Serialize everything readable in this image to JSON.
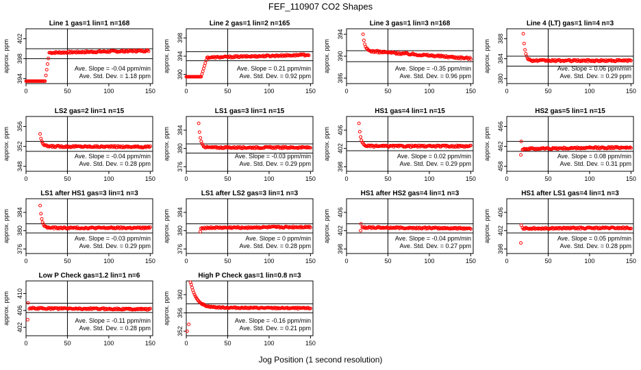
{
  "page_title": "FEF_110907  CO2 Shapes",
  "x_axis_label": "Jog Position (1 second resolution)",
  "y_axis_label": "approx. ppm",
  "colors": {
    "points": "#ff0000",
    "axes": "#000000"
  },
  "chart_data": [
    {
      "type": "scatter",
      "title": "Line 1 gas=1 lin=1 n=168",
      "ylim": [
        393,
        404
      ],
      "yticks": [
        394,
        398,
        402
      ],
      "xlim": [
        0,
        153
      ],
      "xticks": [
        0,
        50,
        100,
        150
      ],
      "hlines": [
        400,
        398
      ],
      "vline": 50,
      "series": [
        {
          "shape": "rise",
          "start": 0,
          "pre": 393.5,
          "rise_start": 23,
          "rise_end": 28,
          "val": 399.2,
          "end": 148,
          "final": 399.6
        }
      ],
      "slope_text": "Ave. Slope = -0.04  ppm/min",
      "std_text": "Ave. Std. Dev. = 1.18  ppm"
    },
    {
      "type": "scatter",
      "title": "Line 2 gas=1 lin=2 n=165",
      "ylim": [
        388,
        400
      ],
      "yticks": [
        390,
        394,
        398
      ],
      "xlim": [
        0,
        153
      ],
      "xticks": [
        0,
        50,
        100,
        150
      ],
      "hlines": [
        395,
        393
      ],
      "vline": 50,
      "series": [
        {
          "shape": "rise",
          "start": 0,
          "pre": 389.5,
          "rise_start": 18,
          "rise_end": 25,
          "val": 393.7,
          "end": 148,
          "final": 394.3
        }
      ],
      "slope_text": "Ave. Slope = 0.21  ppm/min",
      "std_text": "Ave. Std. Dev. = 0.92  ppm"
    },
    {
      "type": "scatter",
      "title": "Line 3 gas=1 lin=3 n=168",
      "ylim": [
        385,
        395
      ],
      "yticks": [
        386,
        390,
        394
      ],
      "xlim": [
        0,
        153
      ],
      "xticks": [
        0,
        50,
        100,
        150
      ],
      "hlines": [
        391,
        389
      ],
      "vline": 50,
      "series": [
        {
          "shape": "decay",
          "start": 20,
          "peak": 394,
          "val": 391,
          "end": 150,
          "final": 389.6
        }
      ],
      "slope_text": "Ave. Slope = -0.35  ppm/min",
      "std_text": "Ave. Std. Dev. = 0.96  ppm"
    },
    {
      "type": "scatter",
      "title": "Line 4 (LT) gas=1 lin=4 n=3",
      "ylim": [
        379,
        390
      ],
      "yticks": [
        380,
        384,
        388
      ],
      "xlim": [
        0,
        153
      ],
      "xticks": [
        0,
        50,
        100,
        150
      ],
      "hlines": [
        384.5,
        382.5
      ],
      "vline": 50,
      "series": [
        {
          "shape": "decay",
          "start": 20,
          "peak": 389,
          "val": 383.6,
          "end": 150,
          "final": 383.6
        }
      ],
      "slope_text": "Ave. Slope = 0.06  ppm/min",
      "std_text": "Ave. Std. Dev. = 0.29  ppm"
    },
    {
      "type": "scatter",
      "title": "LS2 gas=2 lin=1 n=15",
      "ylim": [
        347,
        358
      ],
      "yticks": [
        348,
        352,
        356
      ],
      "xlim": [
        0,
        153
      ],
      "xticks": [
        0,
        50,
        100,
        150
      ],
      "hlines": [
        353,
        351
      ],
      "vline": 50,
      "series": [
        {
          "shape": "decay",
          "start": 17,
          "peak": 354.5,
          "val": 352,
          "end": 150,
          "final": 351.9
        }
      ],
      "slope_text": "Ave. Slope = -0.04  ppm/min",
      "std_text": "Ave. Std. Dev. = 0.28  ppm"
    },
    {
      "type": "scatter",
      "title": "LS1 gas=3 lin=1 n=15",
      "ylim": [
        375,
        387
      ],
      "yticks": [
        376,
        380,
        384
      ],
      "xlim": [
        0,
        153
      ],
      "xticks": [
        0,
        50,
        100,
        150
      ],
      "hlines": [
        381,
        379
      ],
      "vline": 50,
      "series": [
        {
          "shape": "decay",
          "start": 15,
          "peak": 385.5,
          "val": 380.2,
          "end": 150,
          "final": 380.2
        }
      ],
      "slope_text": "Ave. Slope = -0.03  ppm/min",
      "std_text": "Ave. Std. Dev. = 0.29  ppm"
    },
    {
      "type": "scatter",
      "title": "HS1 gas=4 lin=1 n=15",
      "ylim": [
        397,
        409
      ],
      "yticks": [
        398,
        402,
        406
      ],
      "xlim": [
        0,
        153
      ],
      "xticks": [
        0,
        50,
        100,
        150
      ],
      "hlines": [
        403.5,
        401.5
      ],
      "vline": 50,
      "series": [
        {
          "shape": "decay",
          "start": 15,
          "peak": 407.5,
          "val": 402.5,
          "end": 150,
          "final": 402.5
        }
      ],
      "slope_text": "Ave. Slope = 0.02  ppm/min",
      "std_text": "Ave. Std. Dev. = 0.29  ppm"
    },
    {
      "type": "scatter",
      "title": "HS2 gas=5 lin=1 n=15",
      "ylim": [
        457,
        468
      ],
      "yticks": [
        458,
        462,
        466
      ],
      "xlim": [
        0,
        153
      ],
      "xticks": [
        0,
        50,
        100,
        150
      ],
      "hlines": [
        463,
        461
      ],
      "vline": 50,
      "series": [
        {
          "shape": "dip",
          "start": 17,
          "low": 460.3,
          "high": 463,
          "val": 461.5,
          "end": 150,
          "final": 461.8
        }
      ],
      "slope_text": "Ave. Slope = 0.08  ppm/min",
      "std_text": "Ave. Std. Dev. = 0.31  ppm"
    },
    {
      "type": "scatter",
      "title": "LS1 after HS1 gas=3 lin=1 n=3",
      "ylim": [
        375,
        387
      ],
      "yticks": [
        376,
        380,
        384
      ],
      "xlim": [
        0,
        153
      ],
      "xticks": [
        0,
        50,
        100,
        150
      ],
      "hlines": [
        381.5,
        379.5
      ],
      "vline": 50,
      "series": [
        {
          "shape": "decay",
          "start": 17,
          "peak": 385.5,
          "val": 380.6,
          "end": 150,
          "final": 380.6
        }
      ],
      "slope_text": "Ave. Slope = -0.03  ppm/min",
      "std_text": "Ave. Std. Dev. = 0.29  ppm"
    },
    {
      "type": "scatter",
      "title": "LS1 after LS2 gas=3 lin=1 n=3",
      "ylim": [
        375,
        387
      ],
      "yticks": [
        376,
        380,
        384
      ],
      "xlim": [
        0,
        153
      ],
      "xticks": [
        0,
        50,
        100,
        150
      ],
      "hlines": [
        381.5,
        379.5
      ],
      "vline": 50,
      "series": [
        {
          "shape": "dip",
          "start": 17,
          "low": 379.8,
          "high": 380.5,
          "val": 380.6,
          "end": 150,
          "final": 380.8
        }
      ],
      "slope_text": "Ave. Slope = 0  ppm/min",
      "std_text": "Ave. Std. Dev. = 0.28  ppm"
    },
    {
      "type": "scatter",
      "title": "HS1 after HS2 gas=4 lin=1 n=3",
      "ylim": [
        397,
        409
      ],
      "yticks": [
        398,
        402,
        406
      ],
      "xlim": [
        0,
        153
      ],
      "xticks": [
        0,
        50,
        100,
        150
      ],
      "hlines": [
        403.5,
        401.5
      ],
      "vline": 50,
      "series": [
        {
          "shape": "dip",
          "start": 17,
          "low": 402,
          "high": 403.5,
          "val": 402.7,
          "end": 150,
          "final": 402.5
        }
      ],
      "slope_text": "Ave. Slope = -0.04  ppm/min",
      "std_text": "Ave. Std. Dev. = 0.27  ppm"
    },
    {
      "type": "scatter",
      "title": "HS1 after LS1 gas=4 lin=1 n=3",
      "ylim": [
        397,
        409
      ],
      "yticks": [
        398,
        402,
        406
      ],
      "xlim": [
        0,
        153
      ],
      "xticks": [
        0,
        50,
        100,
        150
      ],
      "hlines": [
        403.5,
        401.5
      ],
      "vline": 50,
      "series": [
        {
          "shape": "dip",
          "start": 17,
          "low": 399.3,
          "high": 403.2,
          "val": 402.5,
          "end": 150,
          "final": 402.6
        }
      ],
      "slope_text": "Ave. Slope = 0.05  ppm/min",
      "std_text": "Ave. Std. Dev. = 0.28  ppm"
    },
    {
      "type": "scatter",
      "title": "Low P Check gas=1.2 lin=1 n=6",
      "ylim": [
        400,
        413
      ],
      "yticks": [
        402,
        406,
        410
      ],
      "xlim": [
        0,
        153
      ],
      "xticks": [
        0,
        50,
        100,
        150
      ],
      "hlines": [
        407.7,
        405.5
      ],
      "vline": 50,
      "series": [
        {
          "shape": "dip",
          "start": 2,
          "low": 403.8,
          "high": 407.8,
          "val": 406.5,
          "end": 150,
          "final": 406.3
        }
      ],
      "slope_text": "Ave. Slope = -0.11  ppm/min",
      "std_text": "Ave. Std. Dev. = 0.28  ppm"
    },
    {
      "type": "scatter",
      "title": "High P Check gas=1 lin=0.8 n=3",
      "ylim": [
        351,
        363
      ],
      "yticks": [
        352,
        356,
        360
      ],
      "xlim": [
        0,
        153
      ],
      "xticks": [
        0,
        50,
        100,
        150
      ],
      "hlines": [
        358,
        356
      ],
      "vline": 50,
      "series": [
        {
          "shape": "lowthenpeak",
          "start": 3,
          "low": 352,
          "peak": 363,
          "val": 357.2,
          "end": 150,
          "final": 357.0
        }
      ],
      "slope_text": "Ave. Slope = -0.16  ppm/min",
      "std_text": "Ave. Std. Dev. = 0.21  ppm"
    }
  ]
}
